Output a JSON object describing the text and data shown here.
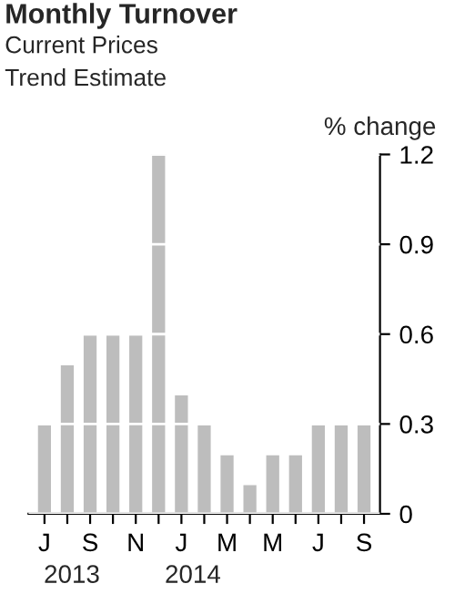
{
  "chart_data": {
    "type": "bar",
    "title": "Monthly Turnover",
    "subtitle": "Current Prices",
    "annotations": [
      "Trend Estimate",
      "2013",
      "2014"
    ],
    "ylabel": "% change",
    "categories": [
      "J",
      null,
      "S",
      null,
      "N",
      null,
      "J",
      null,
      "M",
      null,
      "M",
      null,
      "J",
      null,
      "S"
    ],
    "values": [
      0.3,
      0.5,
      0.6,
      0.6,
      0.6,
      1.2,
      0.4,
      0.3,
      0.2,
      0.1,
      0.2,
      0.2,
      0.3,
      0.3,
      0.3
    ],
    "color": "#bdbdbd",
    "ylim": [
      0,
      1.2
    ],
    "yticks": [
      0,
      0.3,
      0.6,
      0.9,
      1.2
    ],
    "grid": "y",
    "legend": false
  }
}
